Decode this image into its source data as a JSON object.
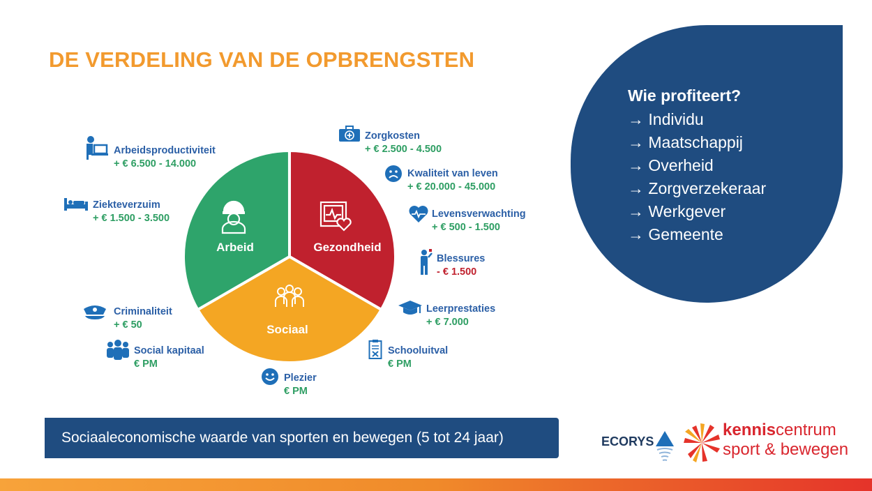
{
  "title": "DE VERDELING VAN DE OPBRENGSTEN",
  "pie": {
    "segments": [
      {
        "label": "Arbeid",
        "color": "#2EA46B",
        "share": 0.3333
      },
      {
        "label": "Gezondheid",
        "color": "#C0212E",
        "share": 0.3333
      },
      {
        "label": "Sociaal",
        "color": "#F4A623",
        "share": 0.3333
      }
    ]
  },
  "items": {
    "arbeidsproductiviteit": {
      "label": "Arbeidsproductiviteit",
      "value": "+ € 6.500 - 14.000",
      "icon": "desk-worker-icon"
    },
    "ziekteverzuim": {
      "label": "Ziekteverzuim",
      "value": "+ € 1.500 - 3.500",
      "icon": "bed-icon"
    },
    "criminaliteit": {
      "label": "Criminaliteit",
      "value": "+ € 50",
      "icon": "police-cap-icon"
    },
    "social_kapitaal": {
      "label": "Social kapitaal",
      "value": "€ PM",
      "icon": "group-icon"
    },
    "plezier": {
      "label": "Plezier",
      "value": "€ PM",
      "icon": "smiley-icon"
    },
    "schooluitval": {
      "label": "Schooluitval",
      "value": "€ PM",
      "icon": "clipboard-x-icon"
    },
    "leerprestaties": {
      "label": "Leerprestaties",
      "value": "+ € 7.000",
      "icon": "graduation-cap-icon"
    },
    "blessures": {
      "label": "Blessures",
      "value": "- € 1.500",
      "icon": "injured-person-icon"
    },
    "levensverwachting": {
      "label": "Levensverwachting",
      "value": "+ € 500 - 1.500",
      "icon": "heart-pulse-icon"
    },
    "kwaliteit": {
      "label": "Kwaliteit van leven",
      "value": "+ € 20.000 - 45.000",
      "icon": "sad-face-icon"
    },
    "zorgkosten": {
      "label": "Zorgkosten",
      "value": "+ € 2.500 - 4.500",
      "icon": "medical-kit-icon"
    }
  },
  "profits": {
    "title": "Wie profiteert?",
    "list": [
      "→ Individu",
      "→ Maatschappij",
      "→ Overheid",
      "→ Zorgverzekeraar",
      "→ Werkgever",
      "→ Gemeente"
    ]
  },
  "caption": "Sociaaleconomische waarde van sporten en bewegen (5 tot 24 jaar)",
  "logos": {
    "ecorys": "ECORYS",
    "kc_bold": "kennis",
    "kc_rest": "centrum",
    "kc_line2": "sport & bewegen"
  }
}
